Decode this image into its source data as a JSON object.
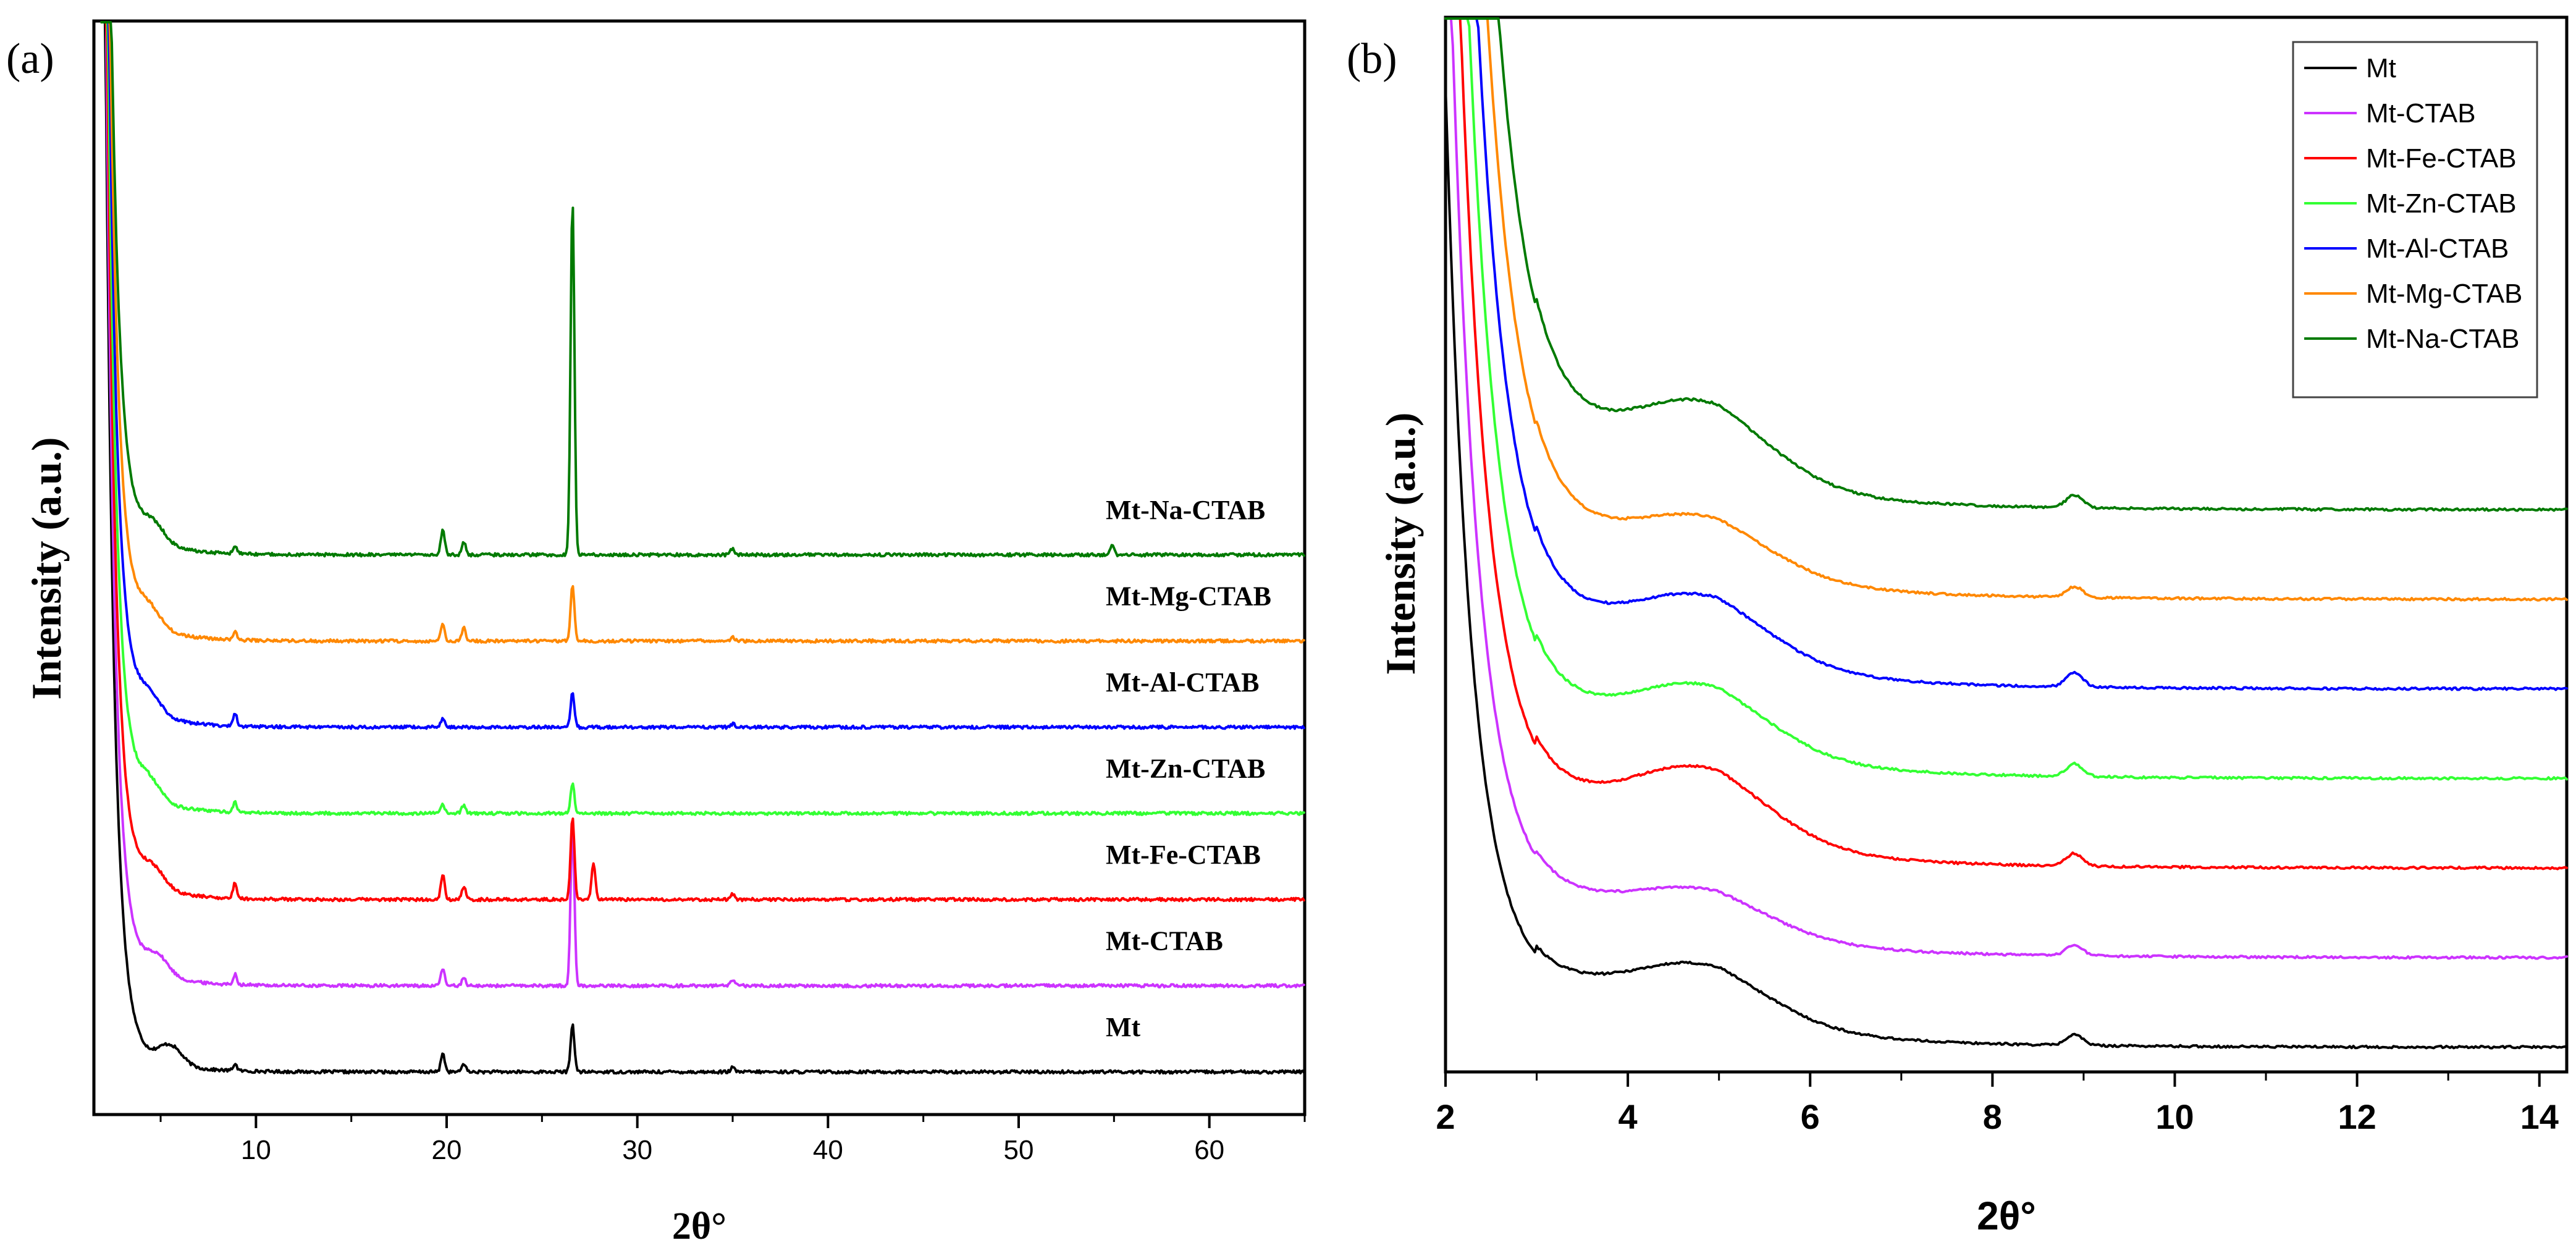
{
  "chart_data": [
    {
      "panel_label": "(a)",
      "type": "line",
      "xlabel": "2θ°",
      "ylabel": "Intensity (a.u.)",
      "xlim": [
        1.5,
        65
      ],
      "xticks": [
        10,
        20,
        30,
        40,
        50,
        60
      ],
      "x_tick_labels": [
        "10",
        "20",
        "30",
        "40",
        "50",
        "60"
      ],
      "y_tick_labels": [],
      "legend": "none — series labelled inline on the right",
      "series": [
        {
          "name": "Mt",
          "label": "Mt",
          "color": "#000000",
          "baseline": 0.0,
          "low_angle": 5.5,
          "peaks": [
            [
              8.9,
              0.08
            ],
            [
              19.8,
              0.22
            ],
            [
              20.9,
              0.1
            ],
            [
              26.6,
              0.55
            ],
            [
              35.0,
              0.05
            ]
          ]
        },
        {
          "name": "Mt-CTAB",
          "label": "Mt-CTAB",
          "color": "#cc33ff",
          "baseline": 1.0,
          "low_angle": 4.8,
          "peaks": [
            [
              8.9,
              0.12
            ],
            [
              19.8,
              0.2
            ],
            [
              20.9,
              0.1
            ],
            [
              26.6,
              1.85
            ],
            [
              35.0,
              0.06
            ]
          ]
        },
        {
          "name": "Mt-Fe-CTAB",
          "label": "Mt-Fe-CTAB",
          "color": "#ff0000",
          "baseline": 2.0,
          "low_angle": 4.6,
          "peaks": [
            [
              8.9,
              0.18
            ],
            [
              19.8,
              0.3
            ],
            [
              20.9,
              0.15
            ],
            [
              26.6,
              0.95
            ],
            [
              27.7,
              0.42
            ],
            [
              35.0,
              0.06
            ]
          ]
        },
        {
          "name": "Mt-Zn-CTAB",
          "label": "Mt-Zn-CTAB",
          "color": "#33ff33",
          "baseline": 3.0,
          "low_angle": 4.4,
          "peaks": [
            [
              8.9,
              0.12
            ],
            [
              19.8,
              0.1
            ],
            [
              20.9,
              0.1
            ],
            [
              26.6,
              0.35
            ]
          ]
        },
        {
          "name": "Mt-Al-CTAB",
          "label": "Mt-Al-CTAB",
          "color": "#0000ff",
          "baseline": 4.0,
          "low_angle": 4.4,
          "peaks": [
            [
              8.9,
              0.15
            ],
            [
              19.8,
              0.1
            ],
            [
              26.6,
              0.4
            ],
            [
              35.0,
              0.04
            ]
          ]
        },
        {
          "name": "Mt-Mg-CTAB",
          "label": "Mt-Mg-CTAB",
          "color": "#ff8800",
          "baseline": 5.0,
          "low_angle": 4.4,
          "peaks": [
            [
              8.9,
              0.1
            ],
            [
              19.8,
              0.2
            ],
            [
              20.9,
              0.15
            ],
            [
              26.6,
              0.65
            ],
            [
              35.0,
              0.05
            ]
          ]
        },
        {
          "name": "Mt-Na-CTAB",
          "label": "Mt-Na-CTAB",
          "color": "#007a00",
          "baseline": 6.0,
          "low_angle": 4.6,
          "peaks": [
            [
              8.9,
              0.1
            ],
            [
              19.8,
              0.3
            ],
            [
              20.9,
              0.15
            ],
            [
              26.6,
              4.1
            ],
            [
              35.0,
              0.08
            ],
            [
              54.9,
              0.1
            ]
          ]
        }
      ]
    },
    {
      "panel_label": "(b)",
      "type": "line",
      "xlabel": "2θ°",
      "ylabel": "Intensity (a.u.)",
      "xlim": [
        2,
        14.3
      ],
      "xticks": [
        2,
        4,
        6,
        8,
        10,
        12,
        14
      ],
      "x_tick_labels": [
        "2",
        "4",
        "6",
        "8",
        "10",
        "12",
        "14"
      ],
      "y_tick_labels": [],
      "legend": "top-right",
      "series": [
        {
          "name": "Mt",
          "color": "#000000",
          "baseline": 0.0,
          "shoulder": 0.9,
          "peak_8_9": 0.12
        },
        {
          "name": "Mt-CTAB",
          "color": "#cc33ff",
          "baseline": 1.0,
          "shoulder": 0.7,
          "peak_8_9": 0.12
        },
        {
          "name": "Mt-Fe-CTAB",
          "color": "#ff0000",
          "baseline": 2.0,
          "shoulder": 1.15,
          "peak_8_9": 0.14
        },
        {
          "name": "Mt-Zn-CTAB",
          "color": "#33ff33",
          "baseline": 3.0,
          "shoulder": 1.05,
          "peak_8_9": 0.14
        },
        {
          "name": "Mt-Al-CTAB",
          "color": "#0000ff",
          "baseline": 4.0,
          "shoulder": 1.05,
          "peak_8_9": 0.16
        },
        {
          "name": "Mt-Mg-CTAB",
          "color": "#ff8800",
          "baseline": 5.0,
          "shoulder": 0.9,
          "peak_8_9": 0.12
        },
        {
          "name": "Mt-Na-CTAB",
          "color": "#007a00",
          "baseline": 6.0,
          "shoulder": 1.25,
          "peak_8_9": 0.14
        }
      ]
    }
  ]
}
